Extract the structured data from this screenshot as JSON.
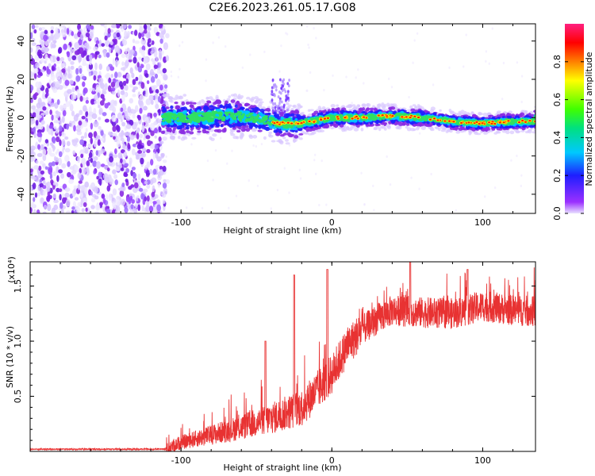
{
  "title": "C2E6.2023.261.05.17.G08",
  "colors": {
    "snr_line": "#e83232"
  },
  "chart_data": [
    {
      "type": "heatmap",
      "name": "spectrogram",
      "xlabel": "Height of straight line (km)",
      "ylabel": "Frequency (Hz)",
      "xlim": [
        -200,
        135
      ],
      "ylim": [
        -50,
        49
      ],
      "x_ticks": [
        -100,
        0,
        100
      ],
      "y_ticks": [
        -40,
        -20,
        0,
        20,
        40
      ],
      "colorbar": {
        "label": "Normalized spectral amplitude",
        "range": [
          0,
          1
        ],
        "ticks": [
          "0.0",
          "0.2",
          "0.4",
          "0.6",
          "0.8"
        ],
        "colormap": "rainbow (purple → blue → cyan → green → yellow → red → magenta)"
      },
      "features": {
        "noise_region_x": [
          -200,
          -112
        ],
        "signal_start_x": -112,
        "signal_track": {
          "x": [
            -110,
            -90,
            -70,
            -50,
            -35,
            -20,
            0,
            20,
            40,
            60,
            80,
            100,
            120,
            135
          ],
          "freq_hz": [
            0,
            0,
            1,
            0,
            -3,
            -3,
            0,
            0,
            1,
            0,
            -2,
            -3,
            -2,
            -2
          ]
        }
      }
    },
    {
      "type": "line",
      "name": "snr",
      "xlabel": "Height of straight line (km)",
      "ylabel": "SNR (10 * v/v)",
      "y_multiplier": "(x10⁴)",
      "xlim": [
        -200,
        135
      ],
      "ylim": [
        0,
        1.72
      ],
      "x_ticks": [
        -100,
        0,
        100
      ],
      "y_ticks": [
        "0.5",
        "1.0",
        "1.5"
      ],
      "envelope": {
        "x": [
          -200,
          -110,
          -100,
          -80,
          -60,
          -40,
          -20,
          0,
          10,
          20,
          30,
          40,
          60,
          80,
          90,
          100,
          110,
          120,
          135
        ],
        "y": [
          0.02,
          0.02,
          0.08,
          0.15,
          0.22,
          0.3,
          0.4,
          0.7,
          0.95,
          1.1,
          1.2,
          1.28,
          1.26,
          1.25,
          1.28,
          1.32,
          1.3,
          1.28,
          1.27
        ]
      },
      "spikes": [
        {
          "x": -44,
          "y": 1.0
        },
        {
          "x": -25,
          "y": 1.6
        },
        {
          "x": -3,
          "y": 1.65
        },
        {
          "x": 52,
          "y": 1.72
        },
        {
          "x": 90,
          "y": 1.65
        }
      ]
    }
  ]
}
